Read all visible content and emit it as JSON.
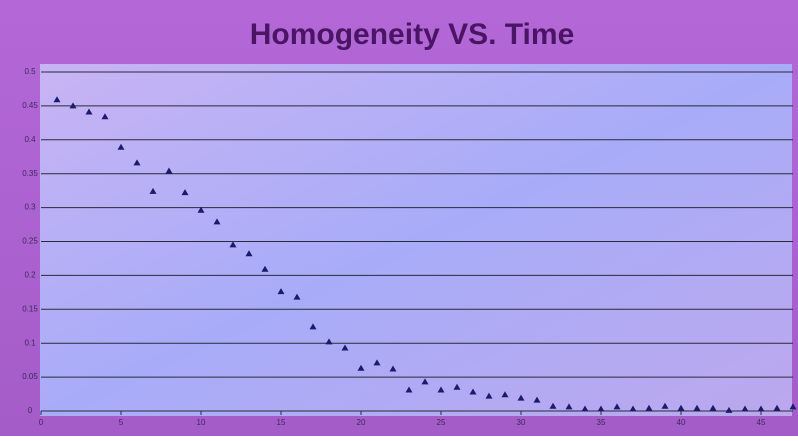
{
  "chart_data": {
    "type": "scatter",
    "title": "Homogeneity VS. Time",
    "x": [
      1,
      2,
      3,
      4,
      5,
      6,
      7,
      8,
      9,
      10,
      11,
      12,
      13,
      14,
      15,
      16,
      17,
      18,
      19,
      20,
      21,
      22,
      23,
      24,
      25,
      26,
      27,
      28,
      29,
      30,
      31,
      32,
      33,
      34,
      35,
      36,
      37,
      38,
      39,
      40,
      41,
      42,
      43,
      44,
      45,
      46,
      47
    ],
    "series": [
      {
        "name": "Homogeneity",
        "color": "#1a1a6e",
        "values": [
          0.459,
          0.45,
          0.441,
          0.434,
          0.389,
          0.366,
          0.324,
          0.354,
          0.322,
          0.296,
          0.279,
          0.245,
          0.232,
          0.209,
          0.176,
          0.168,
          0.124,
          0.102,
          0.093,
          0.063,
          0.071,
          0.062,
          0.031,
          0.043,
          0.031,
          0.035,
          0.028,
          0.022,
          0.024,
          0.019,
          0.016,
          0.007,
          0.006,
          0.003,
          0.003,
          0.006,
          0.003,
          0.004,
          0.007,
          0.004,
          0.004,
          0.004,
          0.001,
          0.003,
          0.003,
          0.004,
          0.006
        ]
      }
    ],
    "xlim": [
      0,
      47
    ],
    "xticks": [
      0,
      5,
      10,
      15,
      20,
      25,
      30,
      35,
      40,
      45
    ],
    "ylim": [
      0,
      0.5
    ],
    "yticks": [
      0,
      0.05,
      0.1,
      0.15,
      0.2,
      0.25,
      0.3,
      0.35,
      0.4,
      0.45,
      0.5
    ],
    "grid": true
  }
}
